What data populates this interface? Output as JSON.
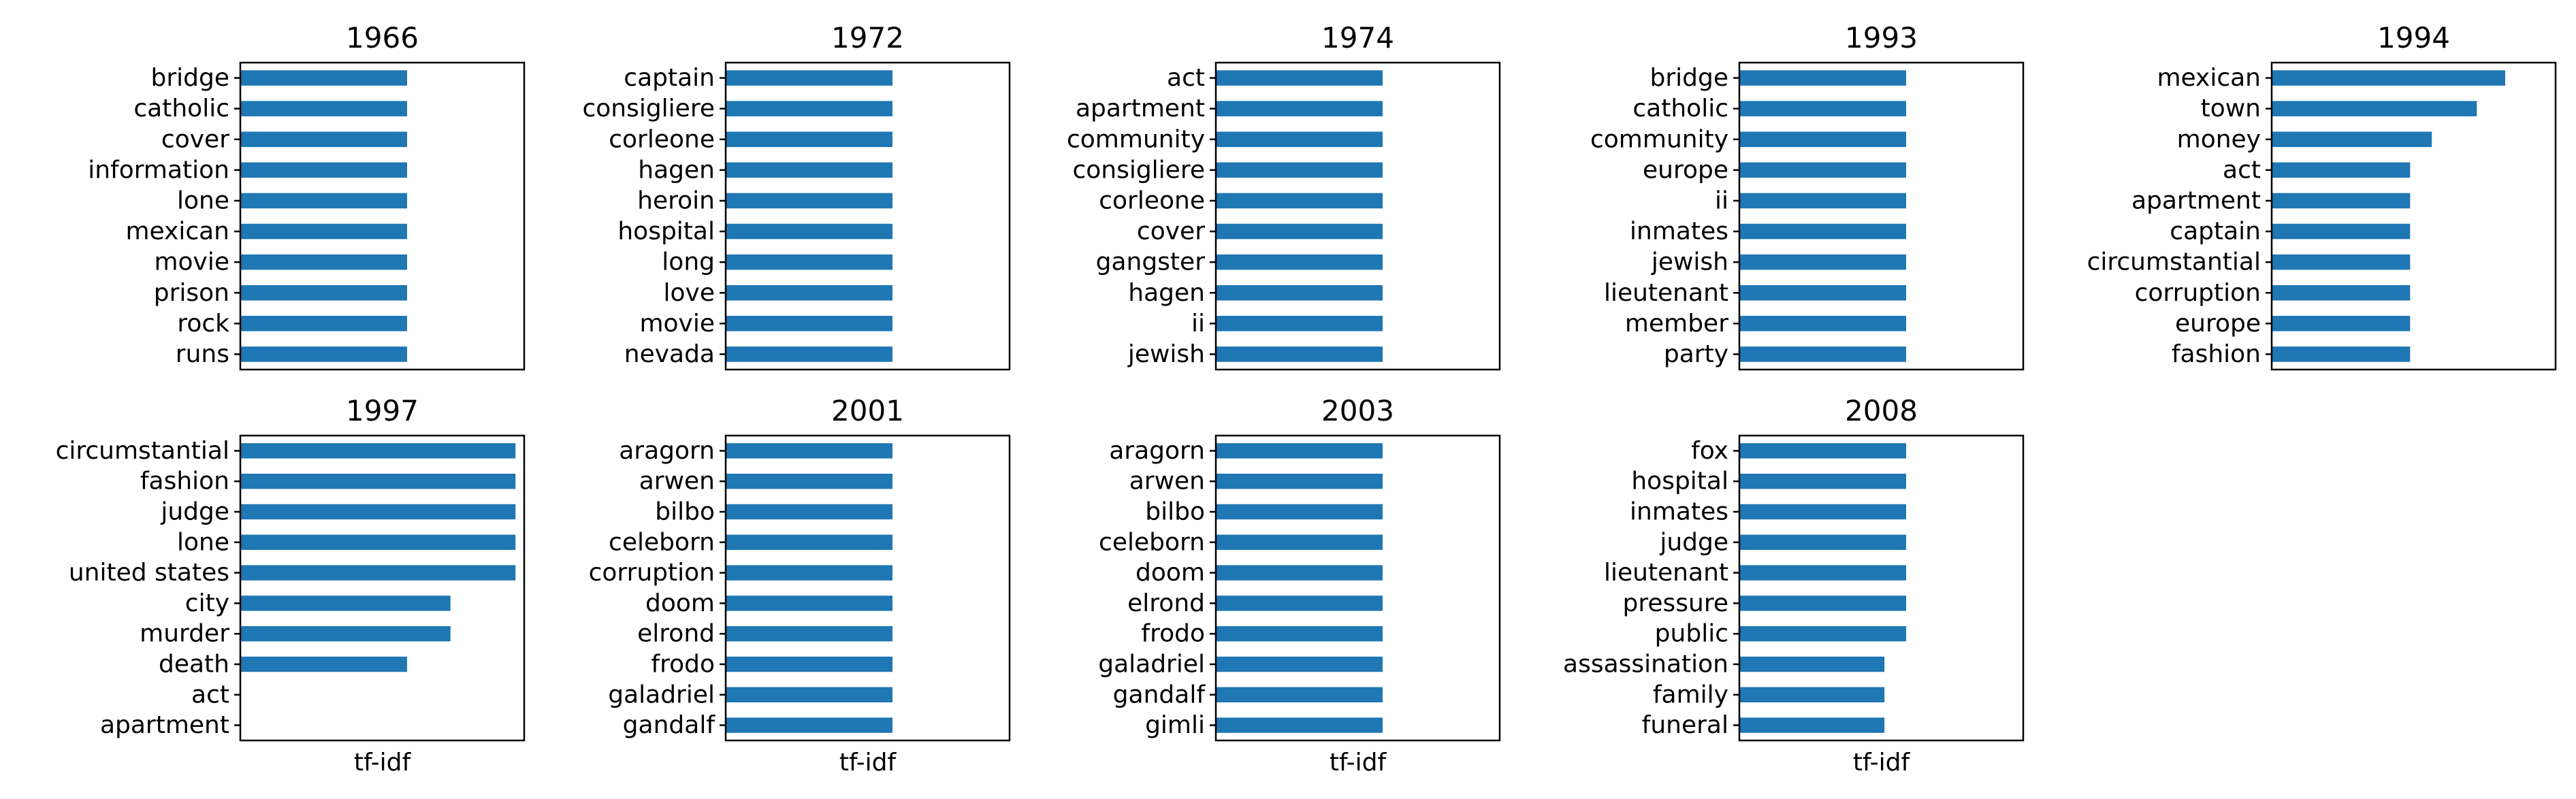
{
  "chart_data": [
    {
      "type": "bar",
      "title": "1966",
      "xlabel": "",
      "categories": [
        "bridge",
        "catholic",
        "cover",
        "information",
        "lone",
        "mexican",
        "movie",
        "prison",
        "rock",
        "runs"
      ],
      "values": [
        1,
        1,
        1,
        1,
        1,
        1,
        1,
        1,
        1,
        1
      ]
    },
    {
      "type": "bar",
      "title": "1972",
      "xlabel": "",
      "categories": [
        "captain",
        "consigliere",
        "corleone",
        "hagen",
        "heroin",
        "hospital",
        "long",
        "love",
        "movie",
        "nevada"
      ],
      "values": [
        1,
        1,
        1,
        1,
        1,
        1,
        1,
        1,
        1,
        1
      ]
    },
    {
      "type": "bar",
      "title": "1974",
      "xlabel": "",
      "categories": [
        "act",
        "apartment",
        "community",
        "consigliere",
        "corleone",
        "cover",
        "gangster",
        "hagen",
        "ii",
        "jewish"
      ],
      "values": [
        1,
        1,
        1,
        1,
        1,
        1,
        1,
        1,
        1,
        1
      ]
    },
    {
      "type": "bar",
      "title": "1993",
      "xlabel": "",
      "categories": [
        "bridge",
        "catholic",
        "community",
        "europe",
        "ii",
        "inmates",
        "jewish",
        "lieutenant",
        "member",
        "party"
      ],
      "values": [
        1,
        1,
        1,
        1,
        1,
        1,
        1,
        1,
        1,
        1
      ]
    },
    {
      "type": "bar",
      "title": "1994",
      "xlabel": "",
      "categories": [
        "mexican",
        "town",
        "money",
        "act",
        "apartment",
        "captain",
        "circumstantial",
        "corruption",
        "europe",
        "fashion"
      ],
      "values": [
        1.4,
        1.23,
        0.96,
        0.83,
        0.83,
        0.83,
        0.83,
        0.83,
        0.83,
        0.83
      ]
    },
    {
      "type": "bar",
      "title": "1997",
      "xlabel": "tf-idf",
      "categories": [
        "circumstantial",
        "fashion",
        "judge",
        "lone",
        "united states",
        "city",
        "murder",
        "death",
        "act",
        "apartment"
      ],
      "values": [
        1.65,
        1.65,
        1.65,
        1.65,
        1.65,
        1.26,
        1.26,
        1.0,
        0,
        0
      ]
    },
    {
      "type": "bar",
      "title": "2001",
      "xlabel": "tf-idf",
      "categories": [
        "aragorn",
        "arwen",
        "bilbo",
        "celeborn",
        "corruption",
        "doom",
        "elrond",
        "frodo",
        "galadriel",
        "gandalf"
      ],
      "values": [
        1,
        1,
        1,
        1,
        1,
        1,
        1,
        1,
        1,
        1
      ]
    },
    {
      "type": "bar",
      "title": "2003",
      "xlabel": "tf-idf",
      "categories": [
        "aragorn",
        "arwen",
        "bilbo",
        "celeborn",
        "doom",
        "elrond",
        "frodo",
        "galadriel",
        "gandalf",
        "gimli"
      ],
      "values": [
        1,
        1,
        1,
        1,
        1,
        1,
        1,
        1,
        1,
        1
      ]
    },
    {
      "type": "bar",
      "title": "2008",
      "xlabel": "tf-idf",
      "categories": [
        "fox",
        "hospital",
        "inmates",
        "judge",
        "lieutenant",
        "pressure",
        "public",
        "assassination",
        "family",
        "funeral"
      ],
      "values": [
        1.0,
        1.0,
        1.0,
        1.0,
        1.0,
        1.0,
        1.0,
        0.87,
        0.87,
        0.87
      ]
    }
  ],
  "colors": {
    "bar": "#1f77b4",
    "axes": "#000000",
    "background": "#ffffff"
  }
}
